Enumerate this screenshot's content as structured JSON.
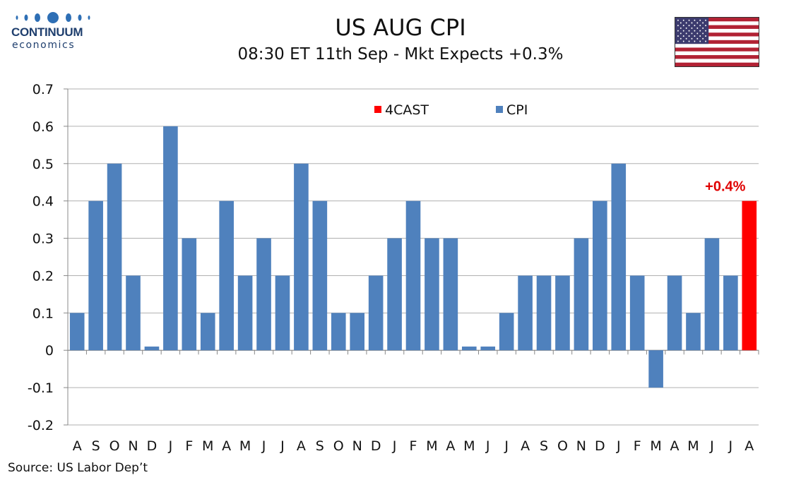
{
  "logo": {
    "name": "CONTINUUM",
    "sub": "economics"
  },
  "title": "US AUG CPI",
  "subtitle": "08:30 ET 11th Sep - Mkt Expects +0.3%",
  "flag_icon": "us-flag-icon",
  "source": "Source: US Labor Dep’t",
  "colors": {
    "cpi": "#4f81bd",
    "forecast": "#ff0000",
    "forecast_label": "#e00000",
    "grid": "#b0b0b0"
  },
  "chart_data": {
    "type": "bar",
    "categories": [
      "A",
      "S",
      "O",
      "N",
      "D",
      "J",
      "F",
      "M",
      "A",
      "M",
      "J",
      "J",
      "A",
      "S",
      "O",
      "N",
      "D",
      "J",
      "F",
      "M",
      "A",
      "M",
      "J",
      "J",
      "A",
      "S",
      "O",
      "N",
      "D",
      "J",
      "F",
      "M",
      "A",
      "M",
      "J",
      "J",
      "A"
    ],
    "series": [
      {
        "name": "CPI",
        "values": [
          0.1,
          0.4,
          0.5,
          0.2,
          0.01,
          0.6,
          0.3,
          0.1,
          0.4,
          0.2,
          0.3,
          0.2,
          0.5,
          0.4,
          0.1,
          0.1,
          0.2,
          0.3,
          0.4,
          0.3,
          0.3,
          0.01,
          0.01,
          0.1,
          0.2,
          0.2,
          0.2,
          0.3,
          0.4,
          0.5,
          0.2,
          -0.1,
          0.2,
          0.1,
          0.3,
          0.2,
          null
        ]
      },
      {
        "name": "4CAST",
        "values": [
          null,
          null,
          null,
          null,
          null,
          null,
          null,
          null,
          null,
          null,
          null,
          null,
          null,
          null,
          null,
          null,
          null,
          null,
          null,
          null,
          null,
          null,
          null,
          null,
          null,
          null,
          null,
          null,
          null,
          null,
          null,
          null,
          null,
          null,
          null,
          null,
          0.4
        ]
      }
    ],
    "annotation": "+0.4%",
    "ylim": [
      -0.2,
      0.7
    ],
    "yticks": [
      "-0.2",
      "-0.1",
      "0",
      "0.1",
      "0.2",
      "0.3",
      "0.4",
      "0.5",
      "0.6",
      "0.7"
    ],
    "grid": true,
    "legend_position": "top-center"
  }
}
